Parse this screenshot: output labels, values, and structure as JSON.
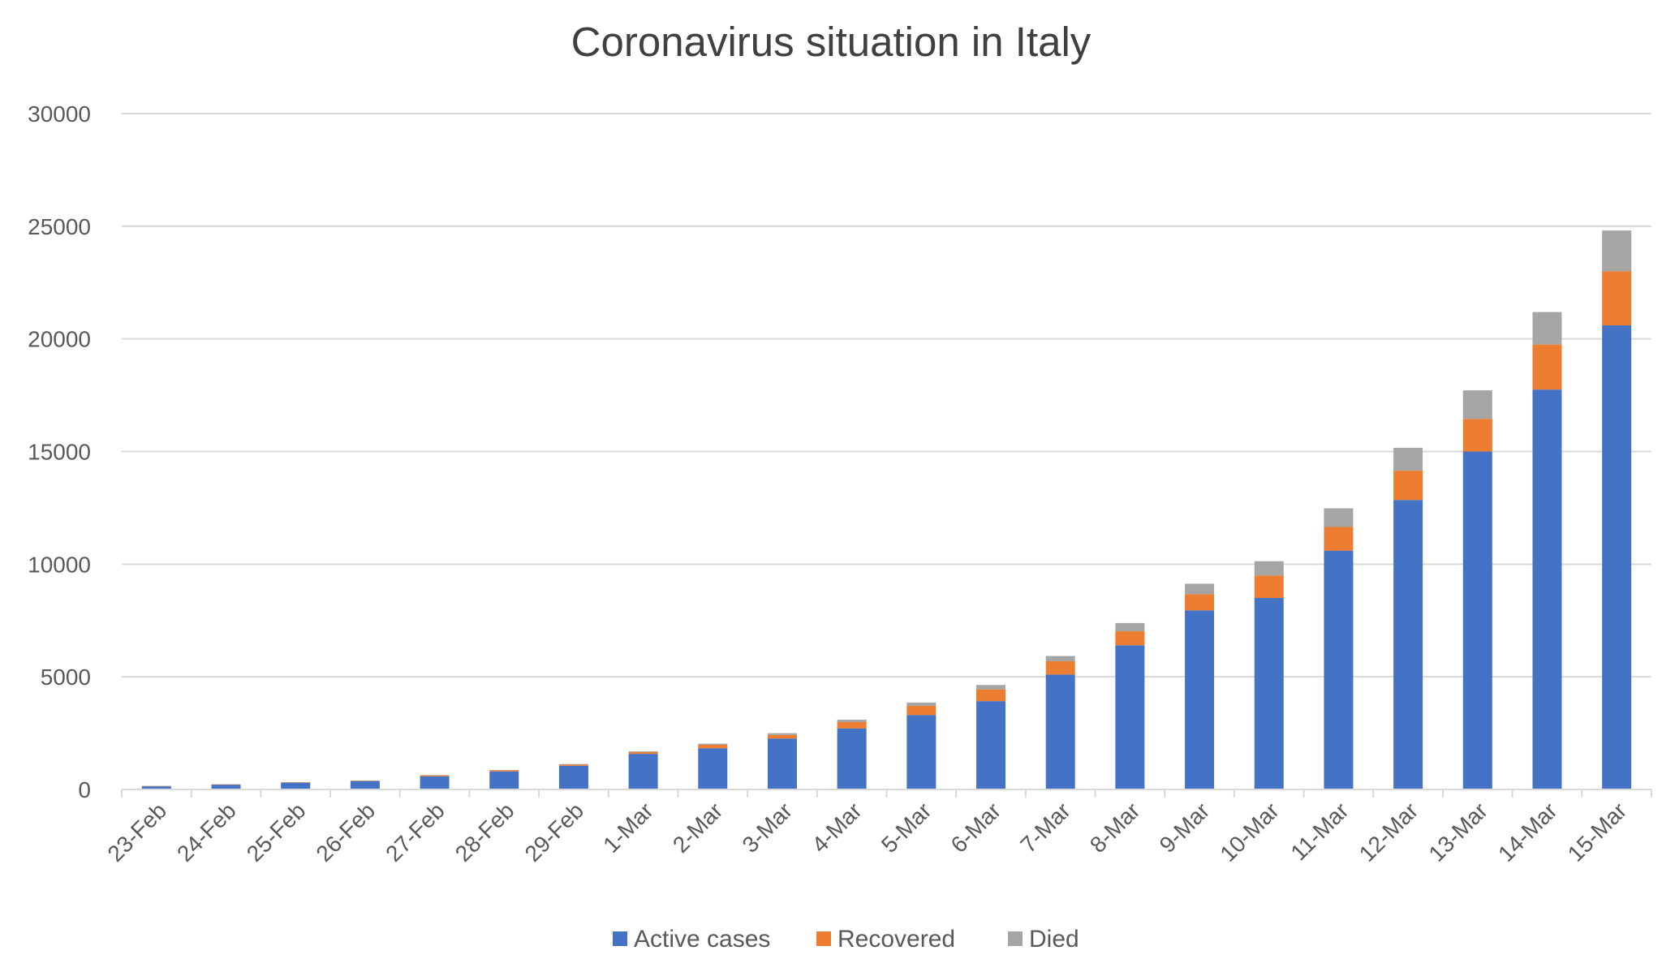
{
  "chart_data": {
    "type": "bar",
    "stacked": true,
    "title": "Coronavirus situation in Italy",
    "xlabel": "",
    "ylabel": "",
    "ylim": [
      0,
      30000
    ],
    "yticks": [
      "0",
      "5000",
      "10000",
      "15000",
      "20000",
      "25000",
      "30000"
    ],
    "grid": "horizontal",
    "legend_position": "bottom",
    "categories": [
      "23-Feb",
      "24-Feb",
      "25-Feb",
      "26-Feb",
      "27-Feb",
      "28-Feb",
      "29-Feb",
      "1-Mar",
      "2-Mar",
      "3-Mar",
      "4-Mar",
      "5-Mar",
      "6-Mar",
      "7-Mar",
      "8-Mar",
      "9-Mar",
      "10-Mar",
      "11-Mar",
      "12-Mar",
      "13-Mar",
      "14-Mar",
      "15-Mar"
    ],
    "series": [
      {
        "name": "Active cases",
        "color": "#4472C4",
        "values": [
          150,
          220,
          310,
          380,
          580,
          800,
          1050,
          1580,
          1830,
          2260,
          2710,
          3300,
          3920,
          5100,
          6400,
          7950,
          8500,
          10600,
          12850,
          15000,
          17750,
          20600
        ]
      },
      {
        "name": "Recovered",
        "color": "#ED7D31",
        "values": [
          1,
          1,
          1,
          3,
          45,
          45,
          50,
          80,
          150,
          160,
          280,
          410,
          520,
          590,
          620,
          720,
          1000,
          1050,
          1300,
          1450,
          2000,
          2400
        ]
      },
      {
        "name": "Died",
        "color": "#A5A5A5",
        "values": [
          3,
          7,
          10,
          12,
          17,
          21,
          29,
          34,
          52,
          79,
          107,
          148,
          197,
          233,
          366,
          463,
          631,
          827,
          1016,
          1266,
          1441,
          1809
        ]
      }
    ]
  }
}
